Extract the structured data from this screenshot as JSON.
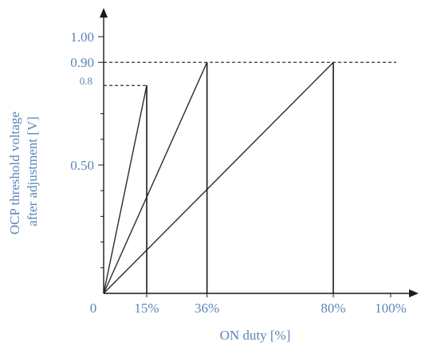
{
  "chart_data": {
    "type": "line",
    "title": "",
    "xlabel": "ON duty [%]",
    "ylabel_lines": [
      "OCP threshold voltage",
      "after adjustment [V]"
    ],
    "x_ticks": [
      {
        "value": 0,
        "label": "0"
      },
      {
        "value": 15,
        "label": "15%"
      },
      {
        "value": 36,
        "label": "36%"
      },
      {
        "value": 80,
        "label": "80%"
      },
      {
        "value": 100,
        "label": "100%"
      }
    ],
    "y_ticks": [
      {
        "value": 0.5,
        "label": "0.50"
      },
      {
        "value": 0.9,
        "label": "0.90"
      },
      {
        "value": 1.0,
        "label": "1.00"
      }
    ],
    "y_minor_ticks": [
      0.1,
      0.2,
      0.3,
      0.4,
      0.6,
      0.7
    ],
    "y_extra_label": {
      "value": 0.81,
      "label": "0.8"
    },
    "xlim": [
      0,
      110
    ],
    "ylim": [
      0,
      1.1
    ],
    "grid": false,
    "series": [
      {
        "x": [
          0,
          15
        ],
        "y": [
          0,
          0.81
        ],
        "end_dash_y": 0.81
      },
      {
        "x": [
          0,
          36
        ],
        "y": [
          0,
          0.9
        ],
        "end_dash_y": 0.9
      },
      {
        "x": [
          0,
          80
        ],
        "y": [
          0,
          0.9
        ],
        "end_dash_y": 0.9
      }
    ]
  }
}
